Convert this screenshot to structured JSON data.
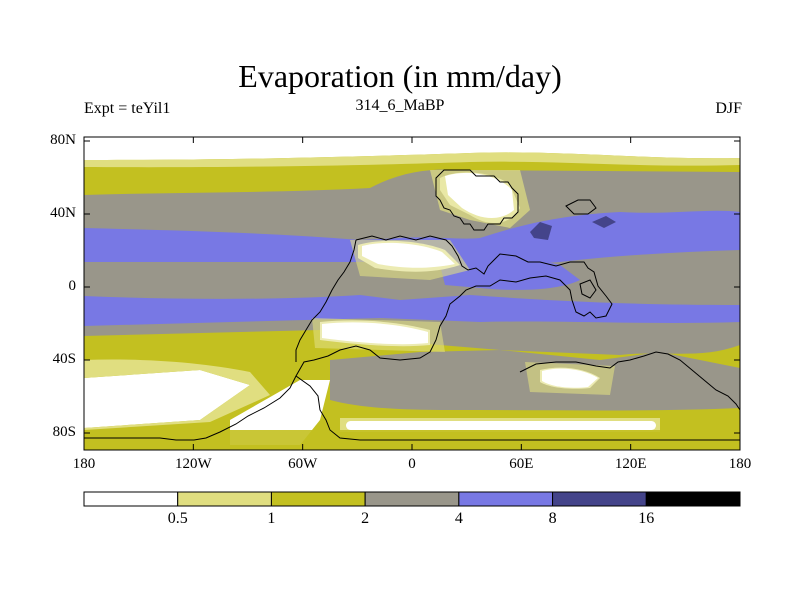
{
  "map": {
    "title": "Evaporation (in mm/day)",
    "left_string": "Expt = teYil1",
    "center_string": "314_6_MaBP",
    "right_string": "DJF",
    "lat_ticks": [
      {
        "label": "80N",
        "lat": 80
      },
      {
        "label": "40N",
        "lat": 40
      },
      {
        "label": "0",
        "lat": 0
      },
      {
        "label": "40S",
        "lat": -40
      },
      {
        "label": "80S",
        "lat": -80
      }
    ],
    "lon_ticks": [
      {
        "label": "180",
        "lon": -180
      },
      {
        "label": "120W",
        "lon": -120
      },
      {
        "label": "60W",
        "lon": -60
      },
      {
        "label": "0",
        "lon": 0
      },
      {
        "label": "60E",
        "lon": 60
      },
      {
        "label": "120E",
        "lon": 120
      },
      {
        "label": "180",
        "lon": 180
      }
    ]
  },
  "colorbar": {
    "levels": [
      "0.5",
      "1",
      "2",
      "4",
      "8",
      "16"
    ],
    "colors": [
      "#ffffff",
      "#e0de80",
      "#c3c020",
      "#99968a",
      "#7878e4",
      "#44448a",
      "#000000"
    ]
  }
}
